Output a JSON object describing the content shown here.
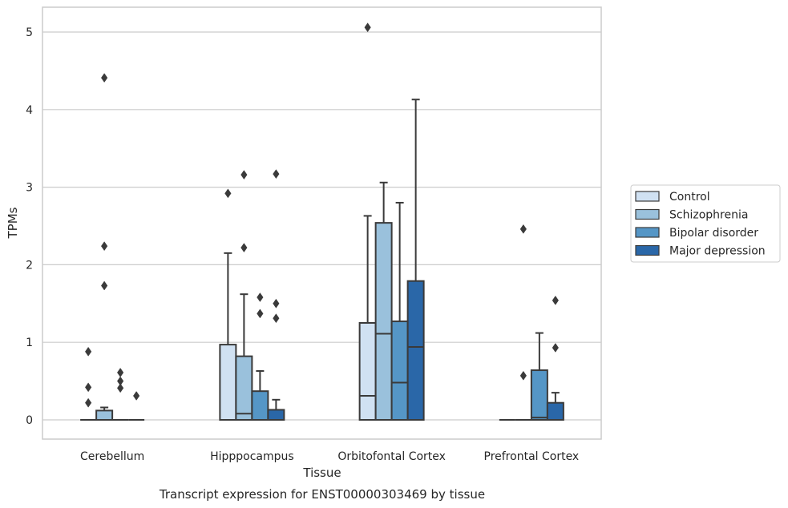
{
  "chart_data": {
    "type": "box",
    "caption": "Transcript expression for ENST00000303469 by tissue",
    "xlabel": "Tissue",
    "ylabel": "TPMs",
    "ylim": [
      -0.25,
      5.32
    ],
    "yticks": [
      0,
      1,
      2,
      3,
      4,
      5
    ],
    "grid": "horizontal",
    "legend_position": "right",
    "categories": [
      "Cerebellum",
      "Hipppocampus",
      "Orbitofontal Cortex",
      "Prefrontal Cortex"
    ],
    "series": [
      {
        "name": "Control",
        "color": "#d0e1f2",
        "boxes": [
          {
            "q1": 0,
            "median": 0,
            "q3": 0,
            "whisker_low": 0,
            "whisker_high": 0,
            "outliers": [
              0.88,
              0.42,
              0.22
            ]
          },
          {
            "q1": 0,
            "median": 0,
            "q3": 0.97,
            "whisker_low": 0,
            "whisker_high": 2.15,
            "outliers": [
              2.92
            ]
          },
          {
            "q1": 0,
            "median": 0.31,
            "q3": 1.25,
            "whisker_low": 0,
            "whisker_high": 2.63,
            "outliers": [
              5.06
            ]
          },
          {
            "q1": 0,
            "median": 0,
            "q3": 0,
            "whisker_low": 0,
            "whisker_high": 0,
            "outliers": []
          }
        ]
      },
      {
        "name": "Schizophrenia",
        "color": "#9ac1dc",
        "boxes": [
          {
            "q1": 0,
            "median": 0,
            "q3": 0.12,
            "whisker_low": 0,
            "whisker_high": 0.16,
            "outliers": [
              4.41,
              2.24,
              1.73
            ]
          },
          {
            "q1": 0,
            "median": 0.08,
            "q3": 0.82,
            "whisker_low": 0,
            "whisker_high": 1.62,
            "outliers": [
              3.16,
              2.22
            ]
          },
          {
            "q1": 0,
            "median": 1.11,
            "q3": 2.54,
            "whisker_low": 0,
            "whisker_high": 3.06,
            "outliers": []
          },
          {
            "q1": 0,
            "median": 0,
            "q3": 0,
            "whisker_low": 0,
            "whisker_high": 0,
            "outliers": [
              2.46,
              0.57
            ]
          }
        ]
      },
      {
        "name": "Bipolar disorder",
        "color": "#5596c6",
        "boxes": [
          {
            "q1": 0,
            "median": 0,
            "q3": 0,
            "whisker_low": 0,
            "whisker_high": 0,
            "outliers": [
              0.61,
              0.5,
              0.41
            ]
          },
          {
            "q1": 0,
            "median": 0,
            "q3": 0.37,
            "whisker_low": 0,
            "whisker_high": 0.63,
            "outliers": [
              1.58,
              1.37
            ]
          },
          {
            "q1": 0,
            "median": 0.48,
            "q3": 1.27,
            "whisker_low": 0,
            "whisker_high": 2.8,
            "outliers": []
          },
          {
            "q1": 0,
            "median": 0.03,
            "q3": 0.64,
            "whisker_low": 0,
            "whisker_high": 1.12,
            "outliers": []
          }
        ]
      },
      {
        "name": "Major depression",
        "color": "#2a67a8",
        "boxes": [
          {
            "q1": 0,
            "median": 0,
            "q3": 0,
            "whisker_low": 0,
            "whisker_high": 0,
            "outliers": [
              0.31
            ]
          },
          {
            "q1": 0,
            "median": 0,
            "q3": 0.13,
            "whisker_low": 0,
            "whisker_high": 0.26,
            "outliers": [
              3.17,
              1.5,
              1.31
            ]
          },
          {
            "q1": 0,
            "median": 0.94,
            "q3": 1.79,
            "whisker_low": 0,
            "whisker_high": 4.13,
            "outliers": []
          },
          {
            "q1": 0,
            "median": 0,
            "q3": 0.22,
            "whisker_low": 0,
            "whisker_high": 0.35,
            "outliers": [
              1.54,
              0.93
            ]
          }
        ]
      }
    ]
  }
}
